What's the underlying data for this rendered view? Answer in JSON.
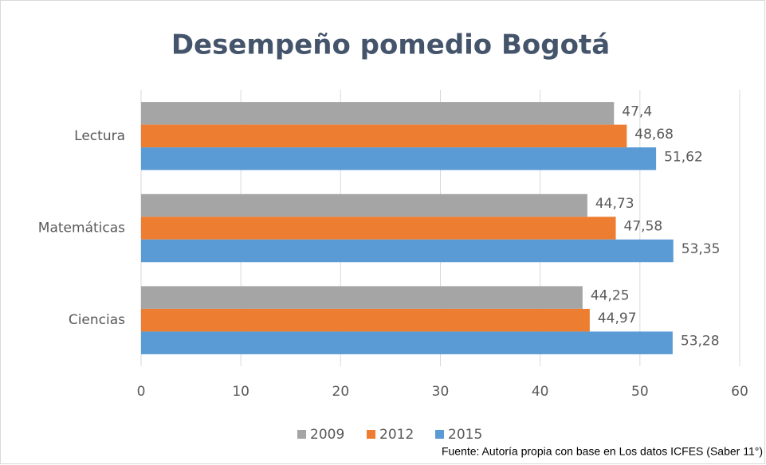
{
  "chart_data": {
    "type": "bar",
    "orientation": "horizontal",
    "title": "Desempeño pomedio Bogotá",
    "categories": [
      "Lectura",
      "Matemáticas",
      "Ciencias"
    ],
    "series": [
      {
        "name": "2009",
        "color": "#a5a5a5",
        "values": [
          47.4,
          44.73,
          44.25
        ],
        "value_labels": [
          "47,4",
          "44,73",
          "44,25"
        ]
      },
      {
        "name": "2012",
        "color": "#ed7d31",
        "values": [
          48.68,
          47.58,
          44.97
        ],
        "value_labels": [
          "48,68",
          "47,58",
          "44,97"
        ]
      },
      {
        "name": "2015",
        "color": "#5b9bd5",
        "values": [
          51.62,
          53.35,
          53.28
        ],
        "value_labels": [
          "51,62",
          "53,35",
          "53,28"
        ]
      }
    ],
    "xlim": [
      0,
      60
    ],
    "xticks": [
      0,
      10,
      20,
      30,
      40,
      50,
      60
    ],
    "grid": true,
    "legend": "bottom",
    "source": "Fuente: Autoría propia con base en Los datos ICFES (Saber 11°)"
  }
}
